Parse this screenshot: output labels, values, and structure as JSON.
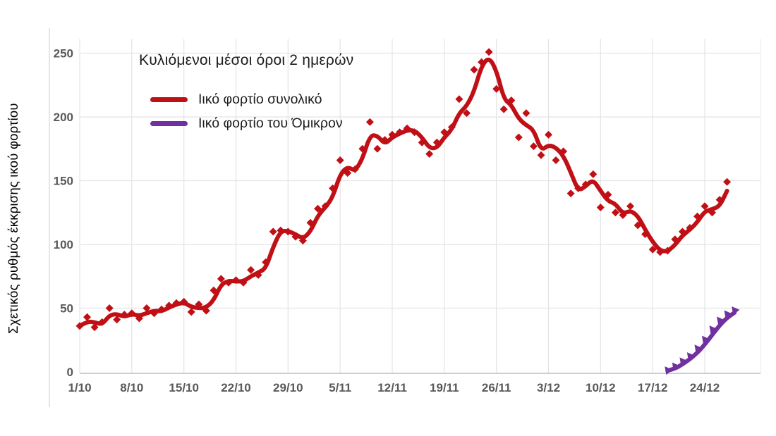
{
  "y_axis_title": "Σχετικός ρυθμός έκκρισης ικού φορτίου",
  "chart_data": {
    "type": "line",
    "subtype": "daily scatter points with 2-day rolling average lines",
    "title": "Κυλιόμενοι μέσοι όροι 2 ημερών",
    "ylabel": "Σχετικός ρυθμός έκκρισης ικού φορτίου",
    "xlabel": "",
    "ylim": [
      0,
      268
    ],
    "y_ticks": [
      0,
      50,
      100,
      150,
      200,
      250
    ],
    "x_tick_labels": [
      "1/10",
      "8/10",
      "15/10",
      "22/10",
      "29/10",
      "5/11",
      "12/11",
      "19/11",
      "26/11",
      "3/12",
      "10/12",
      "17/12",
      "24/12"
    ],
    "x_tick_days": [
      0,
      7,
      14,
      21,
      28,
      35,
      42,
      49,
      56,
      63,
      70,
      77,
      84
    ],
    "grid": true,
    "legend_position": "top-left-inside",
    "series": [
      {
        "name": "Ιικό φορτίο συνολικό",
        "color": "#c01016",
        "marker": "diamond",
        "line": "2-day rolling average",
        "start_date": "1/10",
        "start_day": 0,
        "daily_values": [
          36,
          43,
          35,
          39,
          50,
          41,
          45,
          46,
          42,
          50,
          46,
          49,
          52,
          54,
          55,
          47,
          53,
          48,
          64,
          73,
          70,
          72,
          70,
          80,
          76,
          86,
          110,
          111,
          110,
          106,
          103,
          117,
          128,
          130,
          144,
          166,
          156,
          159,
          175,
          196,
          175,
          182,
          186,
          188,
          191,
          188,
          180,
          171,
          180,
          188,
          192,
          214,
          203,
          237,
          243,
          251,
          222,
          206,
          213,
          184,
          203,
          177,
          170,
          186,
          166,
          173,
          140,
          144,
          147,
          155,
          129,
          139,
          125,
          123,
          130,
          115,
          108,
          96,
          94,
          95,
          104,
          110,
          113,
          122,
          130,
          125,
          135,
          149
        ]
      },
      {
        "name": "Ιικό φορτίο του Όμικρον",
        "color": "#7030a0",
        "marker": "triangle",
        "line": "2-day rolling average",
        "start_date": "19/12",
        "start_day": 79,
        "daily_values": [
          1,
          4,
          8,
          12,
          18,
          25,
          33,
          40,
          45,
          48
        ]
      }
    ]
  }
}
